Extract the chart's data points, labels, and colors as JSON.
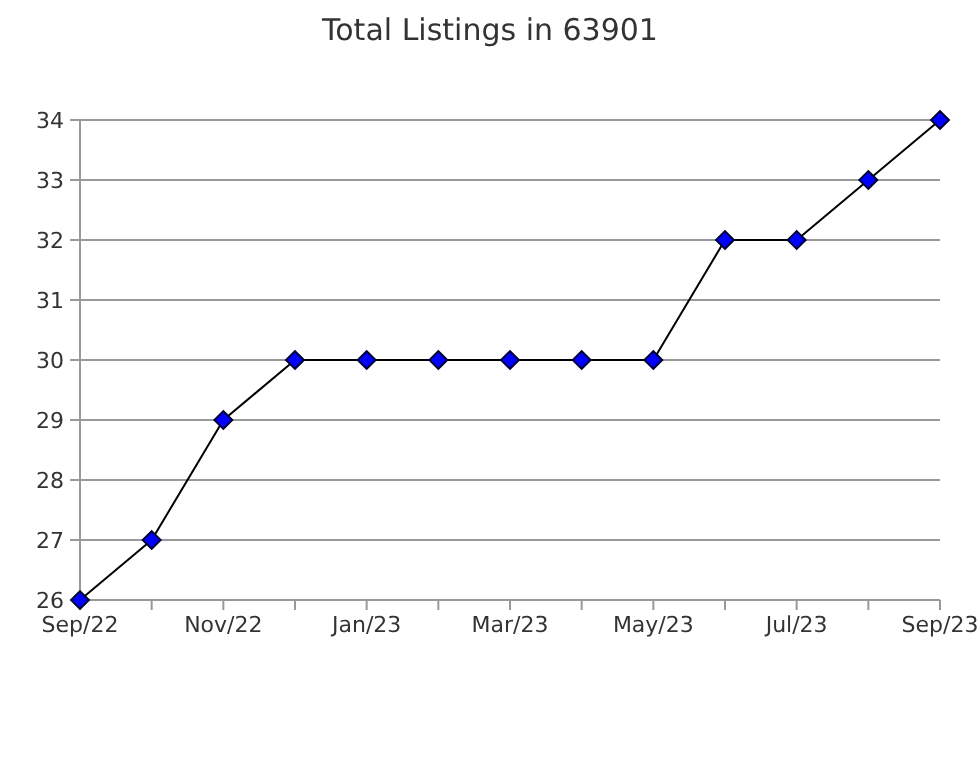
{
  "chart_data": {
    "type": "line",
    "title": "Total Listings in 63901",
    "categories": [
      "Sep/22",
      null,
      "Nov/22",
      null,
      "Jan/23",
      null,
      "Mar/23",
      null,
      "May/23",
      null,
      "Jul/23",
      null,
      "Sep/23"
    ],
    "series": [
      {
        "color": "#0000ff",
        "values": [
          26,
          27,
          29,
          30,
          30,
          30,
          30,
          30,
          30,
          32,
          32,
          33,
          34
        ]
      }
    ],
    "ylim": [
      26,
      34
    ],
    "yticks": [
      26,
      27,
      28,
      29,
      30,
      31,
      32,
      33,
      34
    ],
    "grid": "y",
    "marker": "diamond",
    "line_style": "solid"
  }
}
